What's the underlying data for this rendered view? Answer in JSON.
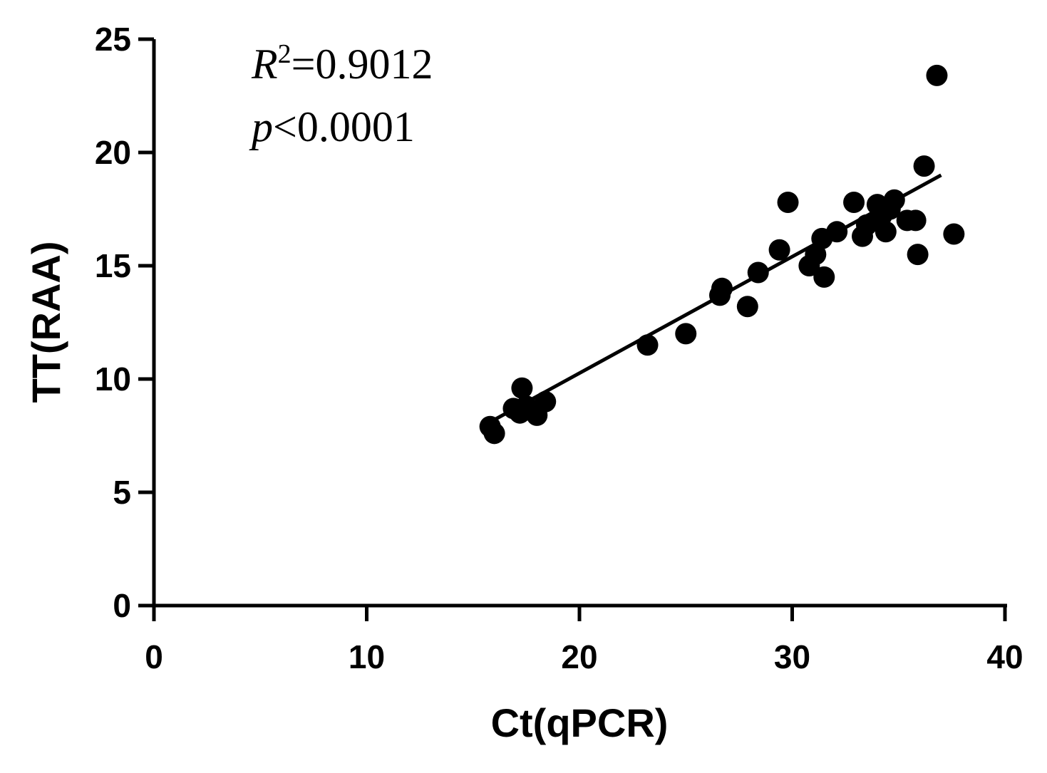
{
  "chart_data": {
    "type": "scatter",
    "xlabel": "Ct(qPCR)",
    "ylabel": "TT(RAA)",
    "xlim": [
      0,
      40
    ],
    "ylim": [
      0,
      25
    ],
    "xticks": [
      0,
      10,
      20,
      30,
      40
    ],
    "yticks": [
      0,
      5,
      10,
      15,
      20,
      25
    ],
    "grid": false,
    "annotations": {
      "r2_symbol": "R",
      "r2_superscript": "2",
      "r2_value": "=0.9012",
      "p_symbol": "p",
      "p_value": "<0.0001"
    },
    "series": [
      {
        "color": "#000000",
        "points": [
          {
            "x": 15.8,
            "y": 7.9
          },
          {
            "x": 16.0,
            "y": 7.6
          },
          {
            "x": 16.9,
            "y": 8.7
          },
          {
            "x": 17.2,
            "y": 8.5
          },
          {
            "x": 17.3,
            "y": 9.6
          },
          {
            "x": 17.5,
            "y": 8.8
          },
          {
            "x": 18.0,
            "y": 8.4
          },
          {
            "x": 18.4,
            "y": 9.0
          },
          {
            "x": 23.2,
            "y": 11.5
          },
          {
            "x": 25.0,
            "y": 12.0
          },
          {
            "x": 26.6,
            "y": 13.7
          },
          {
            "x": 26.7,
            "y": 14.0
          },
          {
            "x": 27.9,
            "y": 13.2
          },
          {
            "x": 28.4,
            "y": 14.7
          },
          {
            "x": 29.4,
            "y": 15.7
          },
          {
            "x": 29.8,
            "y": 17.8
          },
          {
            "x": 30.8,
            "y": 15.0
          },
          {
            "x": 31.1,
            "y": 15.5
          },
          {
            "x": 31.4,
            "y": 16.2
          },
          {
            "x": 31.5,
            "y": 14.5
          },
          {
            "x": 32.1,
            "y": 16.5
          },
          {
            "x": 32.9,
            "y": 17.8
          },
          {
            "x": 33.3,
            "y": 16.3
          },
          {
            "x": 33.5,
            "y": 16.8
          },
          {
            "x": 34.0,
            "y": 17.7
          },
          {
            "x": 34.2,
            "y": 17.2
          },
          {
            "x": 34.4,
            "y": 16.5
          },
          {
            "x": 34.6,
            "y": 17.5
          },
          {
            "x": 34.8,
            "y": 17.9
          },
          {
            "x": 35.4,
            "y": 17.0
          },
          {
            "x": 35.8,
            "y": 17.0
          },
          {
            "x": 35.9,
            "y": 15.5
          },
          {
            "x": 36.2,
            "y": 19.4
          },
          {
            "x": 36.8,
            "y": 23.4
          },
          {
            "x": 37.6,
            "y": 16.4
          }
        ]
      }
    ],
    "fit_line": {
      "x": [
        15.8,
        37.0
      ],
      "y": [
        8.1,
        19.0
      ]
    }
  }
}
